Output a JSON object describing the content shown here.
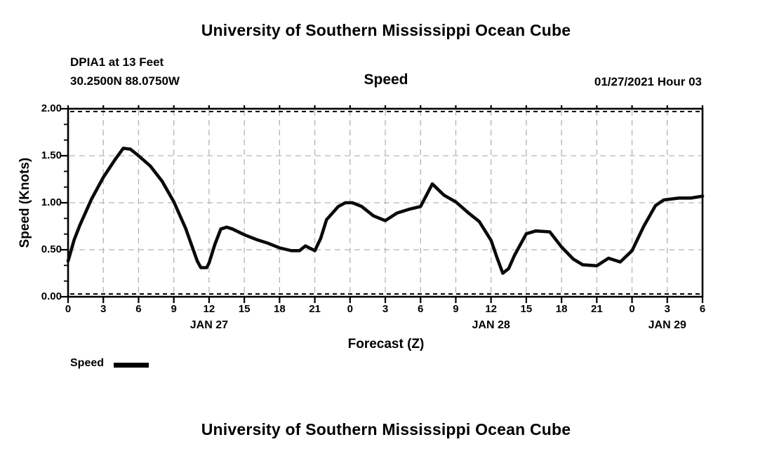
{
  "header": {
    "title_top": "University of Southern Mississippi Ocean Cube",
    "station": "DPIA1 at 13 Feet",
    "coords": "30.2500N 88.0750W",
    "plot_title": "Speed",
    "run_info": "01/27/2021 Hour 03"
  },
  "footer": {
    "title_bottom": "University of Southern Mississippi Ocean Cube"
  },
  "legend": {
    "label": "Speed",
    "line_color": "#000000"
  },
  "colors": {
    "text": "#000000",
    "curve": "#0a0a0a",
    "grid": "#b3b3b3",
    "frame": "#000000",
    "background": "#ffffff"
  },
  "chart_data": {
    "type": "line",
    "title": "Speed",
    "xlabel": "Forecast (Z)",
    "ylabel": "Speed (Knots)",
    "x_unit": "forecast hour (Z) starting 01/27 00Z",
    "xlim": [
      0,
      54
    ],
    "ylim": [
      0,
      2.0
    ],
    "grid": {
      "on": true,
      "dashed": true
    },
    "x_major_ticks": [
      0,
      3,
      6,
      9,
      12,
      15,
      18,
      21,
      24,
      27,
      30,
      33,
      36,
      39,
      42,
      45,
      48,
      51,
      54
    ],
    "x_tick_labels": [
      "0",
      "3",
      "6",
      "9",
      "12",
      "15",
      "18",
      "21",
      "0",
      "3",
      "6",
      "9",
      "12",
      "15",
      "18",
      "21",
      "0",
      "3",
      "6"
    ],
    "date_labels": [
      {
        "label": "JAN 27",
        "hour": 12
      },
      {
        "label": "JAN 28",
        "hour": 36
      },
      {
        "label": "JAN 29",
        "hour": 51
      }
    ],
    "y_major_ticks": [
      0,
      0.5,
      1.0,
      1.5,
      2.0
    ],
    "y_tick_labels": [
      "0.00",
      "0.50",
      "1.00",
      "1.50",
      "2.00"
    ],
    "y_minor_per_major": 2,
    "legend_position": "bottom-left",
    "series": [
      {
        "name": "Speed",
        "units": "Knots",
        "points": [
          [
            0,
            0.38
          ],
          [
            0.5,
            0.6
          ],
          [
            1,
            0.76
          ],
          [
            2,
            1.04
          ],
          [
            3,
            1.27
          ],
          [
            4,
            1.46
          ],
          [
            4.7,
            1.58
          ],
          [
            5.3,
            1.57
          ],
          [
            6,
            1.5
          ],
          [
            7,
            1.39
          ],
          [
            8,
            1.23
          ],
          [
            9,
            1.01
          ],
          [
            10,
            0.73
          ],
          [
            11,
            0.38
          ],
          [
            11.3,
            0.31
          ],
          [
            11.8,
            0.31
          ],
          [
            12,
            0.36
          ],
          [
            12.5,
            0.56
          ],
          [
            13,
            0.72
          ],
          [
            13.5,
            0.74
          ],
          [
            14,
            0.72
          ],
          [
            15,
            0.66
          ],
          [
            16,
            0.61
          ],
          [
            17,
            0.57
          ],
          [
            18,
            0.52
          ],
          [
            19,
            0.49
          ],
          [
            19.7,
            0.49
          ],
          [
            20.2,
            0.54
          ],
          [
            21,
            0.49
          ],
          [
            21.5,
            0.62
          ],
          [
            22,
            0.82
          ],
          [
            23,
            0.96
          ],
          [
            23.6,
            1.0
          ],
          [
            24.2,
            1.0
          ],
          [
            25,
            0.96
          ],
          [
            26,
            0.86
          ],
          [
            27,
            0.81
          ],
          [
            28,
            0.89
          ],
          [
            29,
            0.93
          ],
          [
            30,
            0.96
          ],
          [
            31,
            1.2
          ],
          [
            32,
            1.08
          ],
          [
            33,
            1.01
          ],
          [
            34,
            0.9
          ],
          [
            35,
            0.8
          ],
          [
            36,
            0.6
          ],
          [
            36.5,
            0.42
          ],
          [
            37,
            0.25
          ],
          [
            37.5,
            0.3
          ],
          [
            38,
            0.44
          ],
          [
            39,
            0.67
          ],
          [
            39.8,
            0.7
          ],
          [
            41,
            0.69
          ],
          [
            42,
            0.53
          ],
          [
            43,
            0.4
          ],
          [
            43.8,
            0.34
          ],
          [
            45,
            0.33
          ],
          [
            46,
            0.41
          ],
          [
            47,
            0.37
          ],
          [
            48,
            0.49
          ],
          [
            49,
            0.75
          ],
          [
            50,
            0.97
          ],
          [
            50.7,
            1.03
          ],
          [
            52,
            1.05
          ],
          [
            53,
            1.05
          ],
          [
            54,
            1.07
          ]
        ]
      }
    ]
  }
}
